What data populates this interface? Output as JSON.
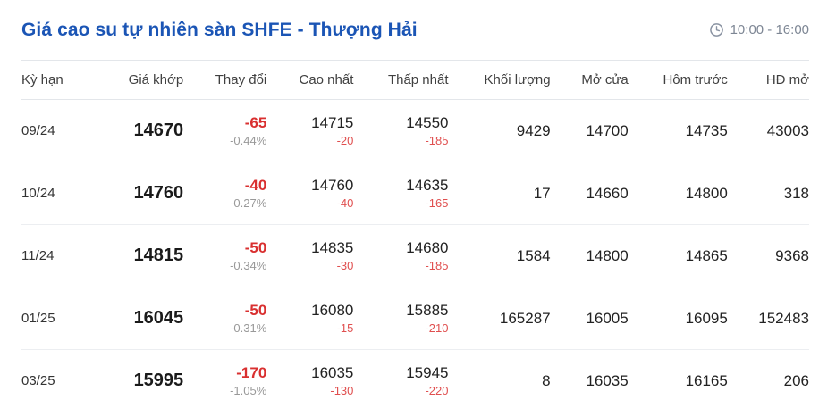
{
  "header": {
    "title": "Giá cao su tự nhiên sàn SHFE - Thượng Hải",
    "time_range": "10:00 - 16:00",
    "clock_icon": "clock-icon"
  },
  "colors": {
    "title_blue": "#1b55b5",
    "negative_red_bold": "#d93030",
    "negative_red_sub": "#e04f4f",
    "percent_gray": "#999999",
    "time_gray": "#7d8694",
    "divider": "#e3e6ea"
  },
  "table": {
    "columns": [
      {
        "key": "term",
        "label": "Kỳ hạn",
        "type": "term"
      },
      {
        "key": "last",
        "label": "Giá khớp",
        "type": "last"
      },
      {
        "key": "change",
        "label": "Thay đổi",
        "type": "change",
        "sub": "change_pct"
      },
      {
        "key": "high",
        "label": "Cao nhất",
        "type": "hl",
        "sub": "high_diff"
      },
      {
        "key": "low",
        "label": "Thấp nhất",
        "type": "hl",
        "sub": "low_diff"
      },
      {
        "key": "volume",
        "label": "Khối lượng",
        "type": "plain"
      },
      {
        "key": "open",
        "label": "Mở cửa",
        "type": "plain"
      },
      {
        "key": "prev",
        "label": "Hôm trước",
        "type": "plain"
      },
      {
        "key": "oi",
        "label": "HĐ mở",
        "type": "plain"
      }
    ],
    "rows": [
      {
        "term": "09/24",
        "last": "14670",
        "change": "-65",
        "change_pct": "-0.44%",
        "high": "14715",
        "high_diff": "-20",
        "low": "14550",
        "low_diff": "-185",
        "volume": "9429",
        "open": "14700",
        "prev": "14735",
        "oi": "43003"
      },
      {
        "term": "10/24",
        "last": "14760",
        "change": "-40",
        "change_pct": "-0.27%",
        "high": "14760",
        "high_diff": "-40",
        "low": "14635",
        "low_diff": "-165",
        "volume": "17",
        "open": "14660",
        "prev": "14800",
        "oi": "318"
      },
      {
        "term": "11/24",
        "last": "14815",
        "change": "-50",
        "change_pct": "-0.34%",
        "high": "14835",
        "high_diff": "-30",
        "low": "14680",
        "low_diff": "-185",
        "volume": "1584",
        "open": "14800",
        "prev": "14865",
        "oi": "9368"
      },
      {
        "term": "01/25",
        "last": "16045",
        "change": "-50",
        "change_pct": "-0.31%",
        "high": "16080",
        "high_diff": "-15",
        "low": "15885",
        "low_diff": "-210",
        "volume": "165287",
        "open": "16005",
        "prev": "16095",
        "oi": "152483"
      },
      {
        "term": "03/25",
        "last": "15995",
        "change": "-170",
        "change_pct": "-1.05%",
        "high": "16035",
        "high_diff": "-130",
        "low": "15945",
        "low_diff": "-220",
        "volume": "8",
        "open": "16035",
        "prev": "16165",
        "oi": "206"
      }
    ]
  }
}
